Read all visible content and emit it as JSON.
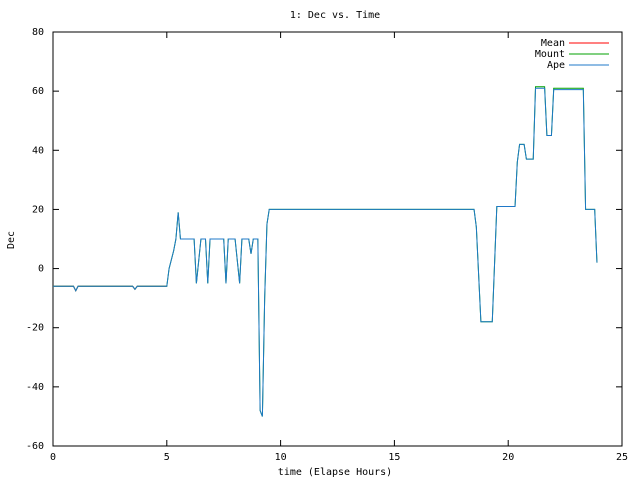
{
  "chart_data": {
    "type": "line",
    "title": "1: Dec vs. Time",
    "x_label": "time (Elapse Hours)",
    "y_label": "Dec",
    "xlim": [
      0,
      25
    ],
    "ylim": [
      -60,
      80
    ],
    "xticks": [
      0,
      5,
      10,
      15,
      20,
      25
    ],
    "yticks": [
      -60,
      -40,
      -20,
      0,
      20,
      40,
      60,
      80
    ],
    "legend": "top-right",
    "x": [
      0,
      0.9,
      1.0,
      1.1,
      3.5,
      3.6,
      3.7,
      5.0,
      5.1,
      5.3,
      5.4,
      5.5,
      5.6,
      6.2,
      6.3,
      6.5,
      6.7,
      6.8,
      6.9,
      7.5,
      7.6,
      7.7,
      8.0,
      8.2,
      8.3,
      8.6,
      8.7,
      8.8,
      9.0,
      9.1,
      9.2,
      9.3,
      9.4,
      9.5,
      18.5,
      18.6,
      18.8,
      19.3,
      19.5,
      20.3,
      20.4,
      20.5,
      20.7,
      20.8,
      21.1,
      21.2,
      21.6,
      21.7,
      21.9,
      22.0,
      23.3,
      23.4,
      23.8,
      23.9
    ],
    "series": [
      {
        "name": "Mean",
        "color": "#ff0000",
        "values": [
          -6,
          -6,
          -7.5,
          -6,
          -6,
          -7,
          -6,
          -6,
          null,
          null,
          null,
          null,
          null,
          null,
          null,
          null,
          null,
          null,
          null,
          null,
          null,
          null,
          null,
          null,
          null,
          null,
          null,
          null,
          null,
          null,
          null,
          null,
          null,
          null,
          null,
          null,
          null,
          null,
          null,
          null,
          null,
          null,
          null,
          null,
          null,
          null,
          null,
          null,
          null,
          null,
          null,
          null,
          null,
          null
        ]
      },
      {
        "name": "Mount",
        "color": "#00a000",
        "values": [
          -6,
          -6,
          -7.5,
          -6,
          -6,
          -7,
          -6,
          -6,
          0,
          6,
          10,
          19,
          10,
          10,
          -5,
          10,
          10,
          -5,
          10,
          10,
          -5,
          10,
          10,
          -5,
          10,
          10,
          5,
          10,
          10,
          -48,
          -50,
          -10,
          15,
          20,
          20,
          14,
          -18,
          -18,
          21,
          21,
          36,
          42,
          42,
          37,
          37,
          61.5,
          61.5,
          45,
          45,
          61,
          61,
          20,
          20,
          2
        ]
      },
      {
        "name": "Ape",
        "color": "#1f78c8",
        "values": [
          -6,
          -6,
          -7.5,
          -6,
          -6,
          -7,
          -6,
          -6,
          0,
          6,
          10,
          19,
          10,
          10,
          -5,
          10,
          10,
          -5,
          10,
          10,
          -5,
          10,
          10,
          -5,
          10,
          10,
          5,
          10,
          10,
          -48,
          -50,
          -10,
          15,
          20,
          20,
          14,
          -18,
          -18,
          21,
          21,
          36,
          42,
          42,
          37,
          37,
          61,
          61,
          45,
          45,
          60.5,
          60.5,
          20,
          20,
          2
        ]
      }
    ]
  }
}
